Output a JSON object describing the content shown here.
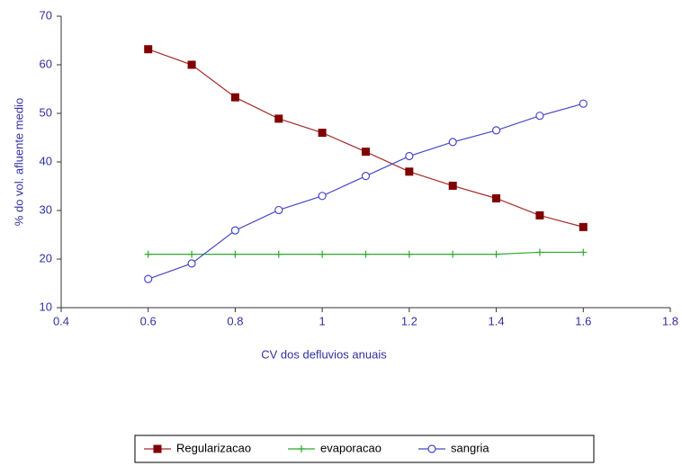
{
  "chart_data": {
    "type": "line",
    "x_label": "CV dos defluvios anuais",
    "y_label": "% do vol. afluente medio",
    "x": [
      0.6,
      0.7,
      0.8,
      0.9,
      1.0,
      1.1,
      1.2,
      1.3,
      1.4,
      1.5,
      1.6
    ],
    "series": [
      {
        "name": "Regularizacao",
        "color": "#a52a2a",
        "marker": "square",
        "values": [
          63.2,
          60,
          53.3,
          48.9,
          46,
          42.1,
          38,
          35.1,
          32.5,
          29,
          26.6
        ]
      },
      {
        "name": "evaporacao",
        "color": "#2eaa2e",
        "marker": "plus",
        "values": [
          21,
          21,
          21,
          21,
          21,
          21,
          21,
          21,
          21,
          21.4,
          21.4
        ]
      },
      {
        "name": "sangria",
        "color": "#4848c8",
        "marker": "circle",
        "values": [
          15.9,
          19.1,
          25.9,
          30.1,
          33,
          37.1,
          41.2,
          44.1,
          46.5,
          49.5,
          52
        ]
      }
    ],
    "xlim": [
      0.4,
      1.8
    ],
    "xticks": [
      0.4,
      0.6,
      0.8,
      1,
      1.2,
      1.4,
      1.6,
      1.8
    ],
    "ylim": [
      10,
      70
    ],
    "yticks": [
      10,
      20,
      30,
      40,
      50,
      60,
      70
    ],
    "grid": false,
    "legend": "bottom"
  }
}
